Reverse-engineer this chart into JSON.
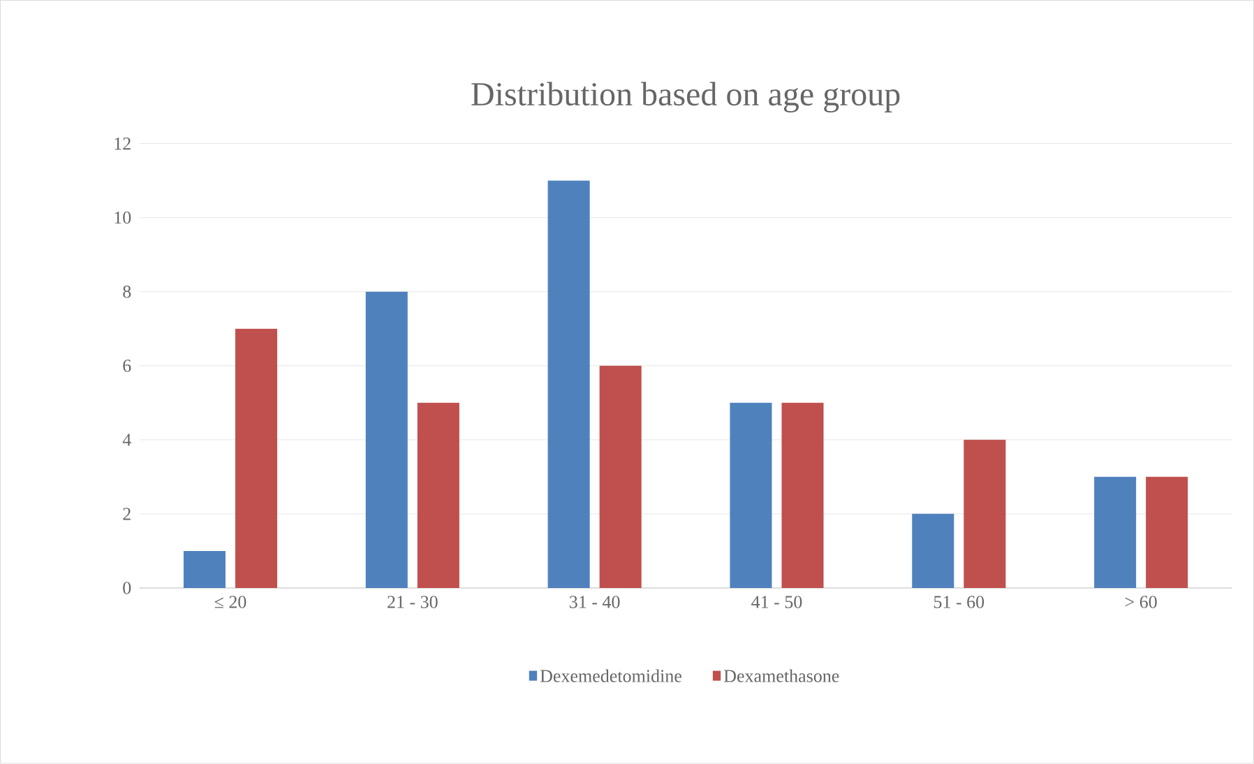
{
  "chart_data": {
    "type": "bar",
    "title": "Distribution based on age group",
    "categories": [
      "≤ 20",
      "21 - 30",
      "31 - 40",
      "41 - 50",
      "51 - 60",
      "> 60"
    ],
    "series": [
      {
        "name": "Dexemedetomidine",
        "color": "#4f81bd",
        "values": [
          1,
          8,
          11,
          5,
          2,
          3
        ]
      },
      {
        "name": "Dexamethasone",
        "color": "#c0504d",
        "values": [
          7,
          5,
          6,
          5,
          4,
          3
        ]
      }
    ],
    "ylim": [
      0,
      12
    ],
    "yticks": [
      0,
      2,
      4,
      6,
      8,
      10,
      12
    ],
    "grid": "y",
    "legend": "bottom"
  }
}
